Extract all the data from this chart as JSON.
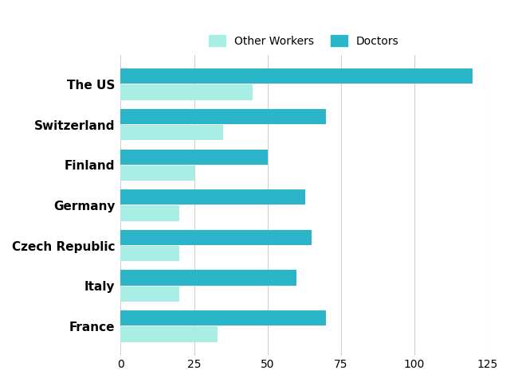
{
  "categories": [
    "The US",
    "Switzerland",
    "Finland",
    "Germany",
    "Czech Republic",
    "Italy",
    "France"
  ],
  "other_workers": [
    45,
    35,
    25,
    20,
    20,
    20,
    33
  ],
  "doctors": [
    120,
    70,
    50,
    63,
    65,
    60,
    70
  ],
  "other_workers_color": "#a8eee4",
  "doctors_color": "#2ab5c8",
  "background_color": "#ffffff",
  "legend_other": "Other Workers",
  "legend_doctors": "Doctors",
  "xlim": [
    0,
    125
  ],
  "xticks": [
    0,
    25,
    50,
    75,
    100,
    125
  ],
  "bar_height": 0.38,
  "bar_gap": 0.02,
  "grid_color": "#d0d0d0",
  "label_fontsize": 11,
  "tick_fontsize": 10
}
